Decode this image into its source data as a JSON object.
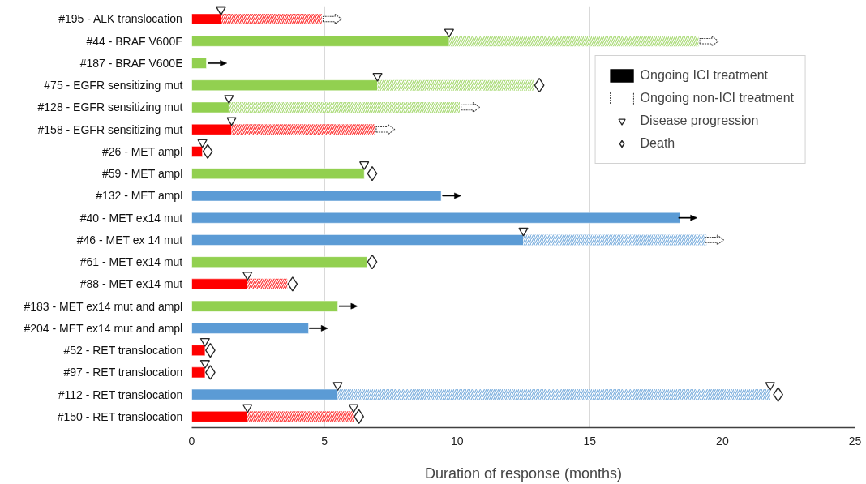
{
  "chart_data": {
    "type": "bar",
    "orientation": "horizontal",
    "stacked": true,
    "categories": [
      "#195 - ALK translocation",
      "#44 - BRAF V600E",
      "#187 - BRAF V600E",
      "#75 - EGFR sensitizing mut",
      "#128 - EGFR sensitizing mut",
      "#158 - EGFR sensitizing mut",
      "#26 - MET ampl",
      "#59 - MET ampl",
      "#132 - MET ampl",
      "#40 - MET ex14 mut",
      "#46 - MET ex 14 mut",
      "#61 - MET ex14 mut",
      "#88 - MET ex14 mut",
      "#183 - MET ex14 mut and ampl",
      "#204 - MET ex14 mut and ampl",
      "#52 - RET translocation",
      "#97 - RET translocation",
      "#112 - RET translocation",
      "#150 - RET translocation"
    ],
    "xlabel": "Duration of response (months)",
    "xlim": [
      0,
      25
    ],
    "xticks": [
      0,
      5,
      10,
      15,
      20,
      25
    ],
    "grid": "x",
    "legend": "top right",
    "series": [
      {
        "colors": [
          "#ff0000",
          "#92d050",
          "#92d050",
          "#92d050",
          "#92d050",
          "#ff0000",
          "#ff0000",
          "#92d050",
          "#5b9bd5",
          "#5b9bd5",
          "#5b9bd5",
          "#92d050",
          "#ff0000",
          "#92d050",
          "#5b9bd5",
          "#ff0000",
          "#ff0000",
          "#5b9bd5",
          "#ff0000"
        ],
        "values": [
          1.1,
          9.7,
          0.55,
          7.0,
          1.4,
          1.5,
          0.4,
          6.5,
          9.4,
          18.4,
          12.5,
          6.6,
          2.1,
          5.5,
          4.4,
          0.5,
          0.5,
          5.5,
          2.1
        ]
      },
      {
        "colors": [
          "#ff0000",
          "#92d050",
          "#92d050",
          "#92d050",
          "#92d050",
          "#ff0000",
          "#ff0000",
          "#92d050",
          "#5b9bd5",
          "#5b9bd5",
          "#5b9bd5",
          "#92d050",
          "#ff0000",
          "#92d050",
          "#5b9bd5",
          "#ff0000",
          "#ff0000",
          "#5b9bd5",
          "#ff0000"
        ],
        "values": [
          3.8,
          9.4,
          null,
          5.9,
          8.7,
          5.4,
          null,
          null,
          null,
          null,
          6.9,
          null,
          1.5,
          null,
          null,
          null,
          null,
          16.3,
          4.0
        ]
      },
      {
        "type": "scatter",
        "name": "Ongoing ICI treatment",
        "marker": "none",
        "line_style": "solid",
        "color": "#000000",
        "values": [
          null,
          null,
          0.97,
          null,
          null,
          null,
          null,
          null,
          9.8,
          18.7,
          null,
          null,
          null,
          5.9,
          4.78,
          null,
          null,
          null,
          null
        ]
      },
      {
        "type": "scatter",
        "name": "Ongoing non-ICI treatment",
        "marker": "none",
        "line_style": "dashed",
        "color": "#404040",
        "values": [
          5.3,
          19.5,
          null,
          null,
          10.5,
          7.3,
          null,
          null,
          null,
          null,
          19.7,
          null,
          null,
          null,
          null,
          null,
          null,
          null,
          null
        ]
      },
      {
        "type": "scatter",
        "name": "Disease progression",
        "marker": "triangle",
        "color": "#262626",
        "values": [
          1.1,
          9.7,
          null,
          7.0,
          1.4,
          1.5,
          0.4,
          6.5,
          null,
          null,
          12.5,
          null,
          2.1,
          null,
          null,
          0.5,
          0.5,
          5.5,
          2.1
        ]
      },
      {
        "type": "scatter",
        "marker": "triangle",
        "color": "#262626",
        "values": [
          null,
          null,
          null,
          null,
          null,
          null,
          null,
          null,
          null,
          null,
          null,
          null,
          null,
          null,
          null,
          null,
          null,
          21.8,
          6.1
        ]
      },
      {
        "type": "scatter",
        "name": "Death",
        "marker": "diamond",
        "color": "#262626",
        "values": [
          null,
          null,
          null,
          13.1,
          null,
          null,
          0.6,
          6.8,
          null,
          null,
          null,
          6.8,
          3.8,
          null,
          null,
          0.7,
          0.7,
          22.1,
          6.3
        ]
      }
    ]
  }
}
